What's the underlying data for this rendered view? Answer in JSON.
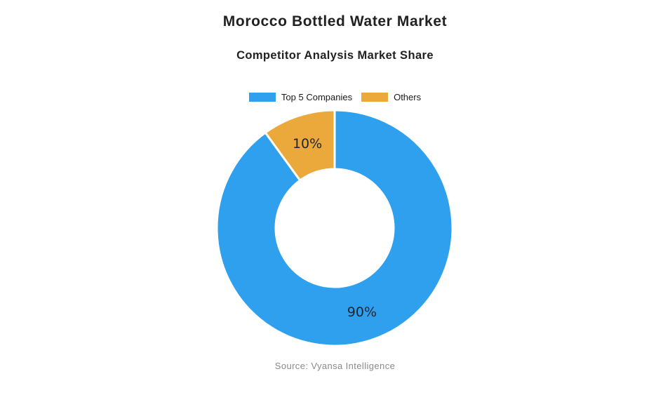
{
  "page": {
    "background_color": "#ffffff"
  },
  "header": {
    "title": "Morocco Bottled Water Market",
    "subtitle": "Competitor Analysis Market Share"
  },
  "legend": {
    "position": "top",
    "items": [
      {
        "label": "Top 5 Companies",
        "color": "#2FA0ED"
      },
      {
        "label": "Others",
        "color": "#EBA93C"
      }
    ]
  },
  "chart_data": {
    "type": "pie",
    "title": "Competitor Analysis Market Share",
    "donut": true,
    "inner_radius_ratio": 0.5,
    "start_angle_deg": 0,
    "direction": "clockwise",
    "labels": [
      "Top 5 Companies",
      "Others"
    ],
    "values": [
      90,
      10
    ],
    "data_labels": [
      "90%",
      "10%"
    ],
    "colors": [
      "#2FA0ED",
      "#EBA93C"
    ],
    "slice_border_color": "#FFFFFF",
    "slice_border_width": 3,
    "label_color": "#1f2433",
    "legend_position": "top"
  },
  "footer": {
    "source": "Source: Vyansa Intelligence"
  }
}
